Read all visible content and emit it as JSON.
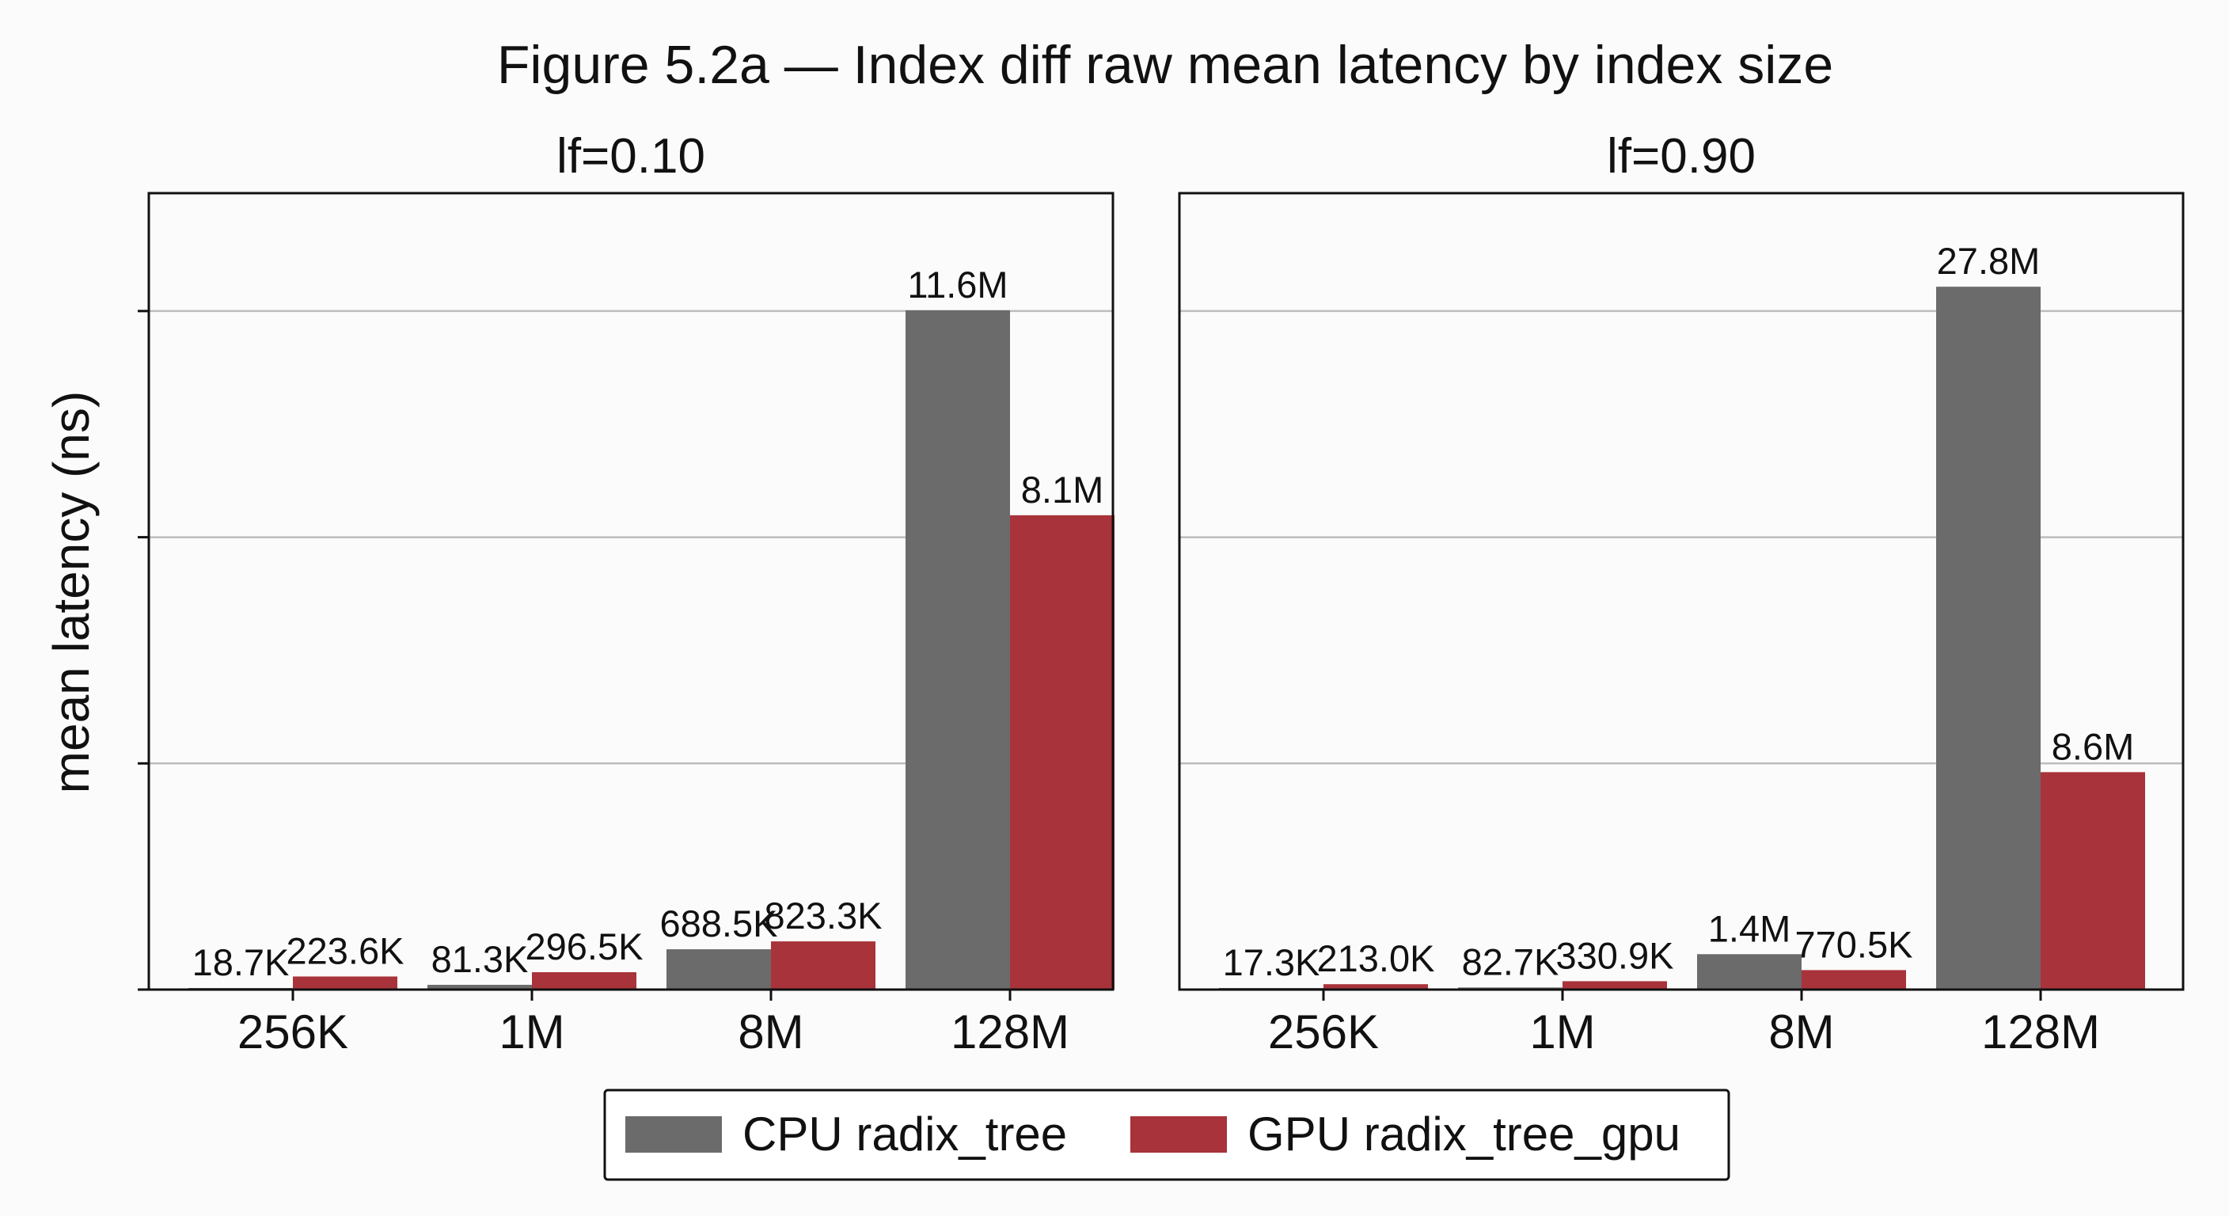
{
  "figure_title": "Figure 5.2a — Index diff raw mean latency by index size",
  "chart_data": {
    "type": "bar",
    "ylabel": "mean latency (ns)",
    "categories": [
      "256K",
      "1M",
      "8M",
      "128M"
    ],
    "grid": true,
    "legend_position": "bottom-center",
    "colors": {
      "CPU radix_tree": "#6b6b6b",
      "GPU radix_tree_gpu": "#a8333a"
    },
    "panels": [
      {
        "title": "lf=0.10",
        "series": [
          {
            "name": "CPU radix_tree",
            "values": [
              18700,
              81300,
              688500,
              11600000
            ],
            "labels": [
              "18.7K",
              "81.3K",
              "688.5K",
              "11.6M"
            ]
          },
          {
            "name": "GPU radix_tree_gpu",
            "values": [
              223600,
              296500,
              823300,
              8100000
            ],
            "labels": [
              "223.6K",
              "296.5K",
              "823.3K",
              "8.1M"
            ]
          }
        ]
      },
      {
        "title": "lf=0.90",
        "series": [
          {
            "name": "CPU radix_tree",
            "values": [
              17300,
              82700,
              1400000,
              27800000
            ],
            "labels": [
              "17.3K",
              "82.7K",
              "1.4M",
              "27.8M"
            ]
          },
          {
            "name": "GPU radix_tree_gpu",
            "values": [
              213000,
              330900,
              770500,
              8600000
            ],
            "labels": [
              "213.0K",
              "330.9K",
              "770.5K",
              "8.6M"
            ]
          }
        ]
      }
    ],
    "legend": [
      "CPU radix_tree",
      "GPU radix_tree_gpu"
    ]
  }
}
